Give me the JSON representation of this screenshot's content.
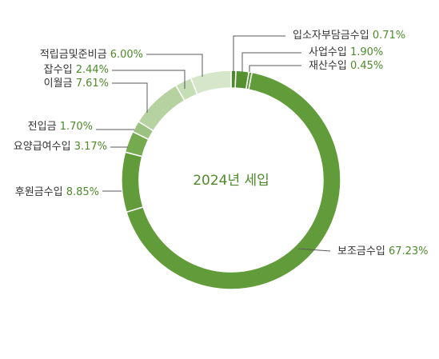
{
  "chart_data": {
    "type": "pie",
    "style": "donut",
    "title": "2024년 세입",
    "legend": "none",
    "label_color": "#4e8a2c",
    "slices": [
      {
        "name": "입소자부담금수입",
        "value": 0.71,
        "display": "0.71%",
        "color": "#4e8a2c"
      },
      {
        "name": "사업수입",
        "value": 1.9,
        "display": "1.90%",
        "color": "#548f30"
      },
      {
        "name": "재산수입",
        "value": 0.45,
        "display": "0.45%",
        "color": "#5b9536"
      },
      {
        "name": "보조금수입",
        "value": 67.23,
        "display": "67.23%",
        "color": "#629c3a"
      },
      {
        "name": "후원금수입",
        "value": 8.85,
        "display": "8.85%",
        "color": "#629c3a"
      },
      {
        "name": "요양급여수입",
        "value": 3.17,
        "display": "3.17%",
        "color": "#75ab4e"
      },
      {
        "name": "전입금",
        "value": 1.7,
        "display": "1.70%",
        "color": "#9cc281"
      },
      {
        "name": "이월금",
        "value": 7.61,
        "display": "7.61%",
        "color": "#b5d2a0"
      },
      {
        "name": "잡수입",
        "value": 2.44,
        "display": "2.44%",
        "color": "#c7ddb6"
      },
      {
        "name": "적립금및준비금",
        "value": 6.0,
        "display": "6.00%",
        "color": "#d6e6cb"
      }
    ]
  }
}
